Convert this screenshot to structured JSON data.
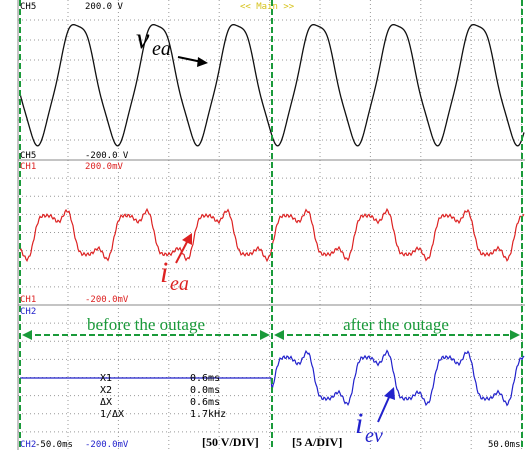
{
  "screen": {
    "mode": "<< Main >>",
    "panels": [
      {
        "channel": "CH5",
        "top_label": "200.0 V",
        "bottom_channel": "CH5",
        "bottom_label": "-200.0 V",
        "signal": "v",
        "signal_sub": "ea"
      },
      {
        "channel": "CH1",
        "top_label": "200.0mV",
        "bottom_channel": "CH1",
        "bottom_label": "-200.0mV",
        "signal": "i",
        "signal_sub": "ea"
      },
      {
        "channel": "CH2",
        "bottom_channel": "CH2",
        "bottom_label": "-200.0mV",
        "signal": "i",
        "signal_sub": "ev"
      }
    ],
    "annotations": {
      "before": "before the outage",
      "after": "after the outage",
      "scale_v": "[50 V/DIV]",
      "scale_i": "[5 A/DIV]"
    },
    "cursors": [
      [
        "X1",
        "0.6ms"
      ],
      [
        "X2",
        "0.0ms"
      ],
      [
        "ΔX",
        "0.6ms"
      ],
      [
        "1/ΔX",
        "1.7kHz"
      ]
    ],
    "time_start": "-50.0ms",
    "time_end": "50.0ms"
  }
}
